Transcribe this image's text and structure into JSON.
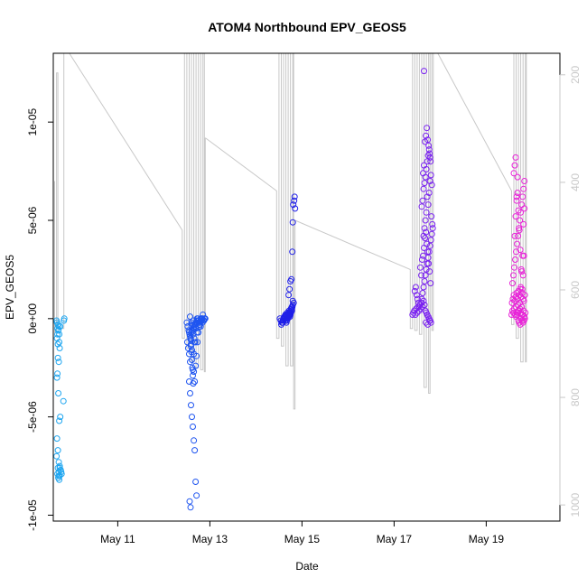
{
  "chart_data": {
    "type": "scatter",
    "title": "ATOM4 Northbound EPV_GEOS5",
    "xlabel": "Date",
    "ylabel": "EPV_GEOS5",
    "x_unit": "date (day of May)",
    "xlim": [
      9.6,
      20.6
    ],
    "ylim": [
      -1.03e-05,
      1.35e-05
    ],
    "x_ticks": [
      {
        "value": 11,
        "label": "May 11"
      },
      {
        "value": 13,
        "label": "May 13"
      },
      {
        "value": 15,
        "label": "May 15"
      },
      {
        "value": 17,
        "label": "May 17"
      },
      {
        "value": 19,
        "label": "May 19"
      }
    ],
    "y_ticks": [
      {
        "value": -1e-05,
        "label": "-1e-05"
      },
      {
        "value": -5e-06,
        "label": "-5e-06"
      },
      {
        "value": 0,
        "label": "0e+00"
      },
      {
        "value": 5e-06,
        "label": "5e-06"
      },
      {
        "value": 1e-05,
        "label": "1e-05"
      }
    ],
    "right_axis": {
      "reversed": true,
      "lim": [
        160,
        1030
      ],
      "ticks": [
        200,
        400,
        600,
        800,
        1000
      ],
      "color": "#c8c8c8"
    },
    "grid": false,
    "legend": "none",
    "colors": {
      "trace": "#c8c8c8",
      "group1": "#1fa6f0",
      "group2": "#1f55f0",
      "group3": "#1f1fe8",
      "group4": "#7a22f0",
      "group5": "#e823d8"
    },
    "groups": [
      {
        "color": "group1",
        "x": [
          9.67,
          9.68,
          9.7,
          9.72,
          9.69,
          9.71,
          9.73,
          9.68,
          9.7,
          9.74,
          9.72,
          9.69,
          9.71,
          9.75,
          9.73,
          9.68,
          9.7,
          9.72,
          9.74,
          9.76,
          9.69,
          9.71,
          9.73,
          9.67,
          9.7,
          9.72,
          9.74,
          9.68,
          9.7,
          9.73,
          9.69,
          9.71,
          9.75,
          9.77,
          9.72,
          9.74,
          9.78,
          9.82,
          9.83,
          9.84
        ],
        "y": [
          -1e-07,
          -2e-07,
          -3e-07,
          -4e-07,
          -5e-07,
          -6e-07,
          -8e-07,
          -1e-06,
          -1.3e-06,
          -1.5e-06,
          -2.2e-06,
          -2.8e-06,
          -3.8e-06,
          -5e-06,
          -5.2e-06,
          -6.1e-06,
          -6.7e-06,
          -7.3e-06,
          -7.5e-06,
          -7.7e-06,
          -7.9e-06,
          -8.1e-06,
          -8.2e-06,
          -7e-06,
          -7.6e-06,
          -7.8e-06,
          -8e-06,
          -3e-06,
          -2e-06,
          -1.2e-06,
          -8e-07,
          -6e-07,
          -4e-07,
          -7.8e-06,
          -8e-06,
          -7.6e-06,
          -7.9e-06,
          -4.2e-06,
          -1e-07,
          0
        ]
      },
      {
        "color": "group2",
        "x": [
          12.5,
          12.52,
          12.54,
          12.56,
          12.58,
          12.6,
          12.62,
          12.64,
          12.66,
          12.68,
          12.7,
          12.72,
          12.74,
          12.76,
          12.78,
          12.8,
          12.82,
          12.84,
          12.86,
          12.88,
          12.9,
          12.51,
          12.53,
          12.55,
          12.57,
          12.59,
          12.61,
          12.63,
          12.65,
          12.67,
          12.69,
          12.71,
          12.73,
          12.75,
          12.77,
          12.79,
          12.81,
          12.83,
          12.85,
          12.87,
          12.89,
          12.55,
          12.57,
          12.59,
          12.61,
          12.63,
          12.65,
          12.67,
          12.69,
          12.71,
          12.56,
          12.58,
          12.6,
          12.62,
          12.64,
          12.66,
          12.68,
          12.7,
          12.72,
          12.74,
          12.76,
          12.78,
          12.8,
          12.82,
          12.84,
          12.57,
          12.58,
          12.59,
          12.6,
          12.61,
          12.62,
          12.63,
          12.64,
          12.65,
          12.66,
          12.6,
          12.62,
          12.64,
          12.66,
          12.68,
          12.7,
          12.72,
          12.74,
          12.76,
          12.78,
          12.8,
          12.82,
          12.55,
          12.57,
          12.59
        ],
        "y": [
          -2e-07,
          -4e-07,
          -6e-07,
          -8e-07,
          -1e-06,
          -2e-07,
          -3e-07,
          -1e-07,
          -5e-07,
          -1.2e-06,
          -2e-07,
          0,
          -1e-07,
          -2e-07,
          -3e-07,
          0,
          -1e-07,
          -2e-07,
          -1e-07,
          0,
          0,
          -1.2e-06,
          -1.5e-06,
          -1.8e-06,
          -2.2e-06,
          -1.3e-06,
          -1.6e-06,
          -2.6e-06,
          -2.7e-06,
          -3.2e-06,
          -2.4e-06,
          -1.9e-06,
          -1.2e-06,
          -7e-07,
          -4e-07,
          -2e-07,
          -1e-07,
          0,
          2e-07,
          -1e-07,
          0,
          -3.2e-06,
          -3.8e-06,
          -4.4e-06,
          -5e-06,
          -5.5e-06,
          -6.2e-06,
          -6.7e-06,
          -8.3e-06,
          -9e-06,
          -9.3e-06,
          -9.6e-06,
          -4e-07,
          -6e-07,
          -8e-07,
          -1e-06,
          -3e-07,
          -5e-07,
          -7e-07,
          -1e-07,
          -2e-07,
          -3e-07,
          -4e-07,
          -1e-07,
          0,
          1e-07,
          -1e-06,
          -1.4e-06,
          -1.7e-06,
          -2.1e-06,
          -2.5e-06,
          -2.9e-06,
          -3.3e-06,
          -1.8e-06,
          -1.2e-06,
          -7e-07,
          -6e-07,
          -5e-07,
          -4e-07,
          -3e-07,
          -2e-07,
          -1e-07,
          0,
          -1e-07,
          -2e-07,
          -1e-07,
          0,
          -7e-07,
          -9e-07,
          -1.1e-06
        ]
      },
      {
        "color": "group3",
        "x": [
          14.52,
          14.54,
          14.56,
          14.58,
          14.6,
          14.62,
          14.64,
          14.66,
          14.68,
          14.7,
          14.72,
          14.74,
          14.76,
          14.78,
          14.55,
          14.57,
          14.59,
          14.61,
          14.63,
          14.65,
          14.67,
          14.69,
          14.71,
          14.73,
          14.75,
          14.77,
          14.79,
          14.58,
          14.6,
          14.62,
          14.64,
          14.66,
          14.68,
          14.7,
          14.72,
          14.74,
          14.76,
          14.78,
          14.8,
          14.82,
          14.6,
          14.62,
          14.64,
          14.66,
          14.68,
          14.7,
          14.72,
          14.74,
          14.76,
          14.78,
          14.8,
          14.71,
          14.73,
          14.75,
          14.77,
          14.79,
          14.8,
          14.81,
          14.83,
          14.84,
          14.85
        ],
        "y": [
          0,
          -1e-07,
          -2e-07,
          -1e-07,
          0,
          1e-07,
          -1e-07,
          -2e-07,
          0,
          1e-07,
          2e-07,
          1e-07,
          3e-07,
          4e-07,
          -3e-07,
          -2e-07,
          -1e-07,
          0,
          1e-07,
          2e-07,
          -1e-07,
          0,
          1e-07,
          3e-07,
          2e-07,
          5e-07,
          6e-07,
          -2e-07,
          -1e-07,
          0,
          1e-07,
          0,
          2e-07,
          1e-07,
          3e-07,
          2e-07,
          4e-07,
          5e-07,
          7e-07,
          8e-07,
          0,
          1e-07,
          2e-07,
          1e-07,
          3e-07,
          2e-07,
          4e-07,
          3e-07,
          5e-07,
          6e-07,
          9e-07,
          1.2e-06,
          1.5e-06,
          1.9e-06,
          2e-06,
          3.4e-06,
          4.9e-06,
          5.8e-06,
          6e-06,
          6.2e-06,
          5.6e-06
        ]
      },
      {
        "color": "group4",
        "x": [
          17.4,
          17.42,
          17.44,
          17.46,
          17.48,
          17.5,
          17.52,
          17.54,
          17.56,
          17.58,
          17.6,
          17.62,
          17.64,
          17.66,
          17.68,
          17.7,
          17.72,
          17.74,
          17.76,
          17.78,
          17.8,
          17.45,
          17.47,
          17.49,
          17.51,
          17.53,
          17.55,
          17.57,
          17.59,
          17.61,
          17.63,
          17.65,
          17.67,
          17.69,
          17.71,
          17.73,
          17.75,
          17.77,
          17.79,
          17.81,
          17.83,
          17.6,
          17.62,
          17.64,
          17.66,
          17.68,
          17.7,
          17.72,
          17.74,
          17.76,
          17.78,
          17.63,
          17.65,
          17.67,
          17.69,
          17.71,
          17.73,
          17.75,
          17.77,
          17.79,
          17.64,
          17.66,
          17.68,
          17.7,
          17.72,
          17.74,
          17.76,
          17.78,
          17.8,
          17.82,
          17.6,
          17.62,
          17.64,
          17.66,
          17.68,
          17.7,
          17.72,
          17.74,
          17.76,
          17.78,
          17.8,
          17.82,
          17.84,
          17.65,
          17.69,
          17.73,
          17.77
        ],
        "y": [
          2e-07,
          3e-07,
          4e-07,
          2e-07,
          5e-07,
          3e-07,
          6e-07,
          4e-07,
          7e-07,
          5e-07,
          8e-07,
          6e-07,
          9e-07,
          7e-07,
          4e-07,
          3e-07,
          2e-07,
          1e-07,
          0,
          -1e-07,
          -2e-07,
          1.4e-06,
          1.6e-06,
          1.2e-06,
          1e-06,
          8e-07,
          6e-07,
          2.6e-06,
          2.2e-06,
          3e-06,
          3.2e-06,
          3.6e-06,
          4.1e-06,
          4.4e-06,
          3.8e-06,
          3.4e-06,
          2.8e-06,
          2.4e-06,
          1.8e-06,
          5.2e-06,
          4.8e-06,
          5.7e-06,
          6e-06,
          6.6e-06,
          6.9e-06,
          7.2e-06,
          7.6e-06,
          8e-06,
          8.3e-06,
          8.6e-06,
          8.2e-06,
          7.4e-06,
          7.8e-06,
          9e-06,
          9.3e-06,
          9.7e-06,
          9.1e-06,
          8.8e-06,
          8.4e-06,
          8e-06,
          4.2e-06,
          4.6e-06,
          5e-06,
          5.4e-06,
          6.2e-06,
          5.8e-06,
          6.4e-06,
          7e-06,
          7.3e-06,
          6.8e-06,
          1e-06,
          1.3e-06,
          1.6e-06,
          1.9e-06,
          2.2e-06,
          2.5e-06,
          2.8e-06,
          3.1e-06,
          3.4e-06,
          3.7e-06,
          4e-06,
          4.3e-06,
          4.6e-06,
          1.26e-05,
          -2e-07,
          -3e-07,
          -1e-07
        ]
      },
      {
        "color": "group5",
        "x": [
          19.55,
          19.57,
          19.59,
          19.61,
          19.63,
          19.65,
          19.67,
          19.69,
          19.71,
          19.73,
          19.75,
          19.77,
          19.79,
          19.81,
          19.83,
          19.85,
          19.56,
          19.58,
          19.6,
          19.62,
          19.64,
          19.66,
          19.68,
          19.7,
          19.72,
          19.74,
          19.76,
          19.78,
          19.8,
          19.82,
          19.84,
          19.57,
          19.59,
          19.61,
          19.63,
          19.65,
          19.67,
          19.69,
          19.71,
          19.73,
          19.75,
          19.77,
          19.79,
          19.81,
          19.83,
          19.6,
          19.62,
          19.64,
          19.66,
          19.68,
          19.7,
          19.72,
          19.74,
          19.76,
          19.78,
          19.8,
          19.82,
          19.62,
          19.64,
          19.66,
          19.68,
          19.7,
          19.72,
          19.74,
          19.76,
          19.78,
          19.8,
          19.82,
          19.84,
          19.65,
          19.67,
          19.69,
          19.71,
          19.73,
          19.75,
          19.77,
          19.79,
          19.81,
          19.83
        ],
        "y": [
          2e-07,
          4e-07,
          3e-07,
          5e-07,
          2e-07,
          6e-07,
          3e-07,
          7e-07,
          4e-07,
          5e-07,
          3e-07,
          6e-07,
          2e-07,
          4e-07,
          1e-07,
          3e-07,
          8e-07,
          1e-06,
          1.2e-06,
          9e-07,
          1.1e-06,
          1.3e-06,
          1e-06,
          1.4e-06,
          1.2e-06,
          1.5e-06,
          1.1e-06,
          1.3e-06,
          1e-06,
          9e-07,
          1.2e-06,
          1.8e-06,
          2.2e-06,
          2.6e-06,
          3e-06,
          3.4e-06,
          3.8e-06,
          4.2e-06,
          4.6e-06,
          5e-06,
          5.4e-06,
          5.8e-06,
          6.2e-06,
          6.6e-06,
          7e-06,
          7.4e-06,
          7.8e-06,
          8.2e-06,
          6e-06,
          6.4e-06,
          5.5e-06,
          4.5e-06,
          3.5e-06,
          2.5e-06,
          1.5e-06,
          2.2e-06,
          3.2e-06,
          4.2e-06,
          5.2e-06,
          6.2e-06,
          7.2e-06,
          -1e-07,
          -2e-07,
          -3e-07,
          0,
          -1e-07,
          -2e-07,
          -1e-07,
          0,
          1e-07,
          2e-07,
          3e-07,
          4e-07,
          8e-07,
          1.6e-06,
          2.4e-06,
          3.2e-06,
          4.8e-06,
          5.6e-06
        ]
      }
    ],
    "trace_segments": [
      [
        [
          9.63,
          7e-06
        ],
        [
          9.63,
          -7e-07
        ],
        [
          9.67,
          -7e-07
        ],
        [
          9.67,
          1.25e-05
        ],
        [
          9.7,
          1.25e-05
        ],
        [
          9.7,
          -5e-07
        ],
        [
          9.83,
          -5e-07
        ],
        [
          9.83,
          1.35e-05
        ]
      ],
      [
        [
          9.95,
          1.35e-05
        ],
        [
          12.4,
          4.5e-06
        ],
        [
          12.4,
          -1e-06
        ],
        [
          12.45,
          -1e-06
        ],
        [
          12.45,
          1.35e-05
        ],
        [
          12.5,
          1.35e-05
        ],
        [
          12.5,
          -1.5e-06
        ],
        [
          12.55,
          -1.5e-06
        ],
        [
          12.55,
          1.35e-05
        ],
        [
          12.6,
          1.35e-05
        ],
        [
          12.6,
          -2.2e-06
        ],
        [
          12.65,
          -2.2e-06
        ],
        [
          12.65,
          1.35e-05
        ],
        [
          12.7,
          1.35e-05
        ],
        [
          12.7,
          -2.5e-06
        ],
        [
          12.75,
          -2.5e-06
        ],
        [
          12.75,
          1.35e-05
        ],
        [
          12.8,
          1.35e-05
        ],
        [
          12.8,
          -2.6e-06
        ],
        [
          12.85,
          -2.6e-06
        ],
        [
          12.85,
          1.35e-05
        ],
        [
          12.88,
          1.35e-05
        ],
        [
          12.88,
          -2.7e-06
        ],
        [
          12.9,
          -2.7e-06
        ],
        [
          12.9,
          9.2e-06
        ]
      ],
      [
        [
          12.9,
          9.2e-06
        ],
        [
          14.45,
          6.5e-06
        ],
        [
          14.45,
          -1e-06
        ],
        [
          14.5,
          -1e-06
        ],
        [
          14.5,
          1.35e-05
        ],
        [
          14.55,
          1.35e-05
        ],
        [
          14.55,
          -1.4e-06
        ],
        [
          14.6,
          -1.4e-06
        ],
        [
          14.6,
          1.35e-05
        ],
        [
          14.65,
          1.35e-05
        ],
        [
          14.65,
          -2.4e-06
        ],
        [
          14.7,
          -2.4e-06
        ],
        [
          14.7,
          1.35e-05
        ],
        [
          14.75,
          1.35e-05
        ],
        [
          14.75,
          -2.4e-06
        ],
        [
          14.8,
          -2.4e-06
        ],
        [
          14.8,
          1.35e-05
        ],
        [
          14.82,
          1.35e-05
        ],
        [
          14.82,
          -4.6e-06
        ],
        [
          14.85,
          -4.6e-06
        ],
        [
          14.85,
          5e-06
        ]
      ],
      [
        [
          14.85,
          5e-06
        ],
        [
          17.35,
          2.5e-06
        ],
        [
          17.35,
          -5e-07
        ],
        [
          17.4,
          -5e-07
        ],
        [
          17.4,
          1.35e-05
        ],
        [
          17.45,
          1.35e-05
        ],
        [
          17.45,
          -6e-07
        ],
        [
          17.5,
          -6e-07
        ],
        [
          17.5,
          1.35e-05
        ],
        [
          17.55,
          1.35e-05
        ],
        [
          17.55,
          -8e-07
        ],
        [
          17.6,
          -8e-07
        ],
        [
          17.6,
          1.35e-05
        ],
        [
          17.65,
          1.35e-05
        ],
        [
          17.65,
          -3.5e-06
        ],
        [
          17.7,
          -3.5e-06
        ],
        [
          17.7,
          1.35e-05
        ],
        [
          17.75,
          1.35e-05
        ],
        [
          17.75,
          -3.8e-06
        ],
        [
          17.78,
          -3.8e-06
        ],
        [
          17.78,
          1.35e-05
        ],
        [
          17.82,
          1.35e-05
        ],
        [
          17.82,
          -6e-07
        ],
        [
          17.85,
          -6e-07
        ],
        [
          17.85,
          1.35e-05
        ]
      ],
      [
        [
          17.95,
          1.35e-05
        ],
        [
          19.55,
          6.5e-06
        ],
        [
          19.55,
          -3e-07
        ],
        [
          19.6,
          -3e-07
        ],
        [
          19.6,
          1.35e-05
        ],
        [
          19.65,
          1.35e-05
        ],
        [
          19.65,
          -1e-06
        ],
        [
          19.7,
          -1e-06
        ],
        [
          19.7,
          1.35e-05
        ],
        [
          19.75,
          1.35e-05
        ],
        [
          19.75,
          -2.2e-06
        ],
        [
          19.8,
          -2.2e-06
        ],
        [
          19.8,
          1.35e-05
        ],
        [
          19.85,
          1.35e-05
        ],
        [
          19.85,
          -2.2e-06
        ],
        [
          19.87,
          -2.2e-06
        ],
        [
          19.87,
          1.35e-05
        ]
      ]
    ]
  }
}
